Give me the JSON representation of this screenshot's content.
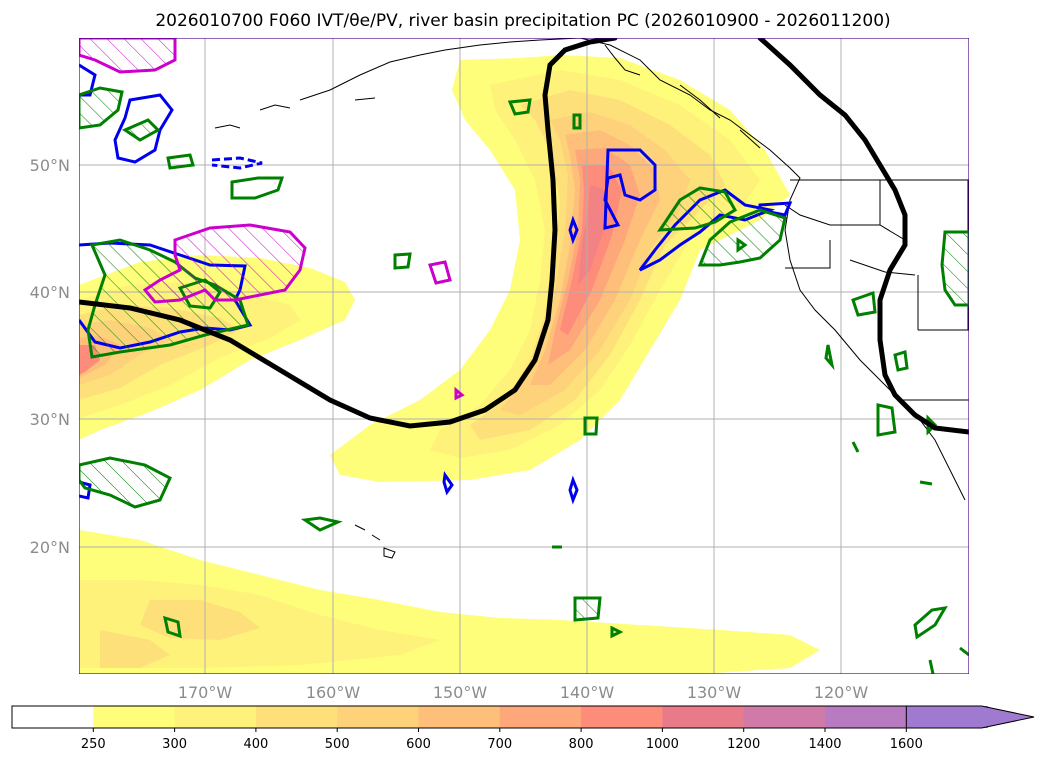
{
  "title": "2026010700 F060 IVT/θe/PV, river basin precipitation PC (2026010900 - 2026011200)",
  "map": {
    "lon_labels": [
      "170°W",
      "160°W",
      "150°W",
      "140°W",
      "130°W",
      "120°W"
    ],
    "lat_labels": [
      "50°N",
      "40°N",
      "30°N",
      "20°N"
    ],
    "grid": true,
    "frame_color": "#4b0082"
  },
  "colorbar": {
    "levels": [
      "250",
      "300",
      "400",
      "500",
      "600",
      "700",
      "800",
      "1000",
      "1200",
      "1400",
      "1600"
    ],
    "colors": [
      "#ffffff",
      "#fefe7a",
      "#fef27a",
      "#fee07a",
      "#fed27a",
      "#febf7a",
      "#fea77a",
      "#fe8c7a",
      "#e87a8a",
      "#d07aa8",
      "#b87ac0",
      "#a07ad0"
    ],
    "extend": "max"
  },
  "contour_colors": {
    "theta_e": "#000000",
    "pv_blue": "#0000ee",
    "pv_green": "#008000",
    "pv_magenta": "#cc00cc",
    "coast": "#000000"
  }
}
